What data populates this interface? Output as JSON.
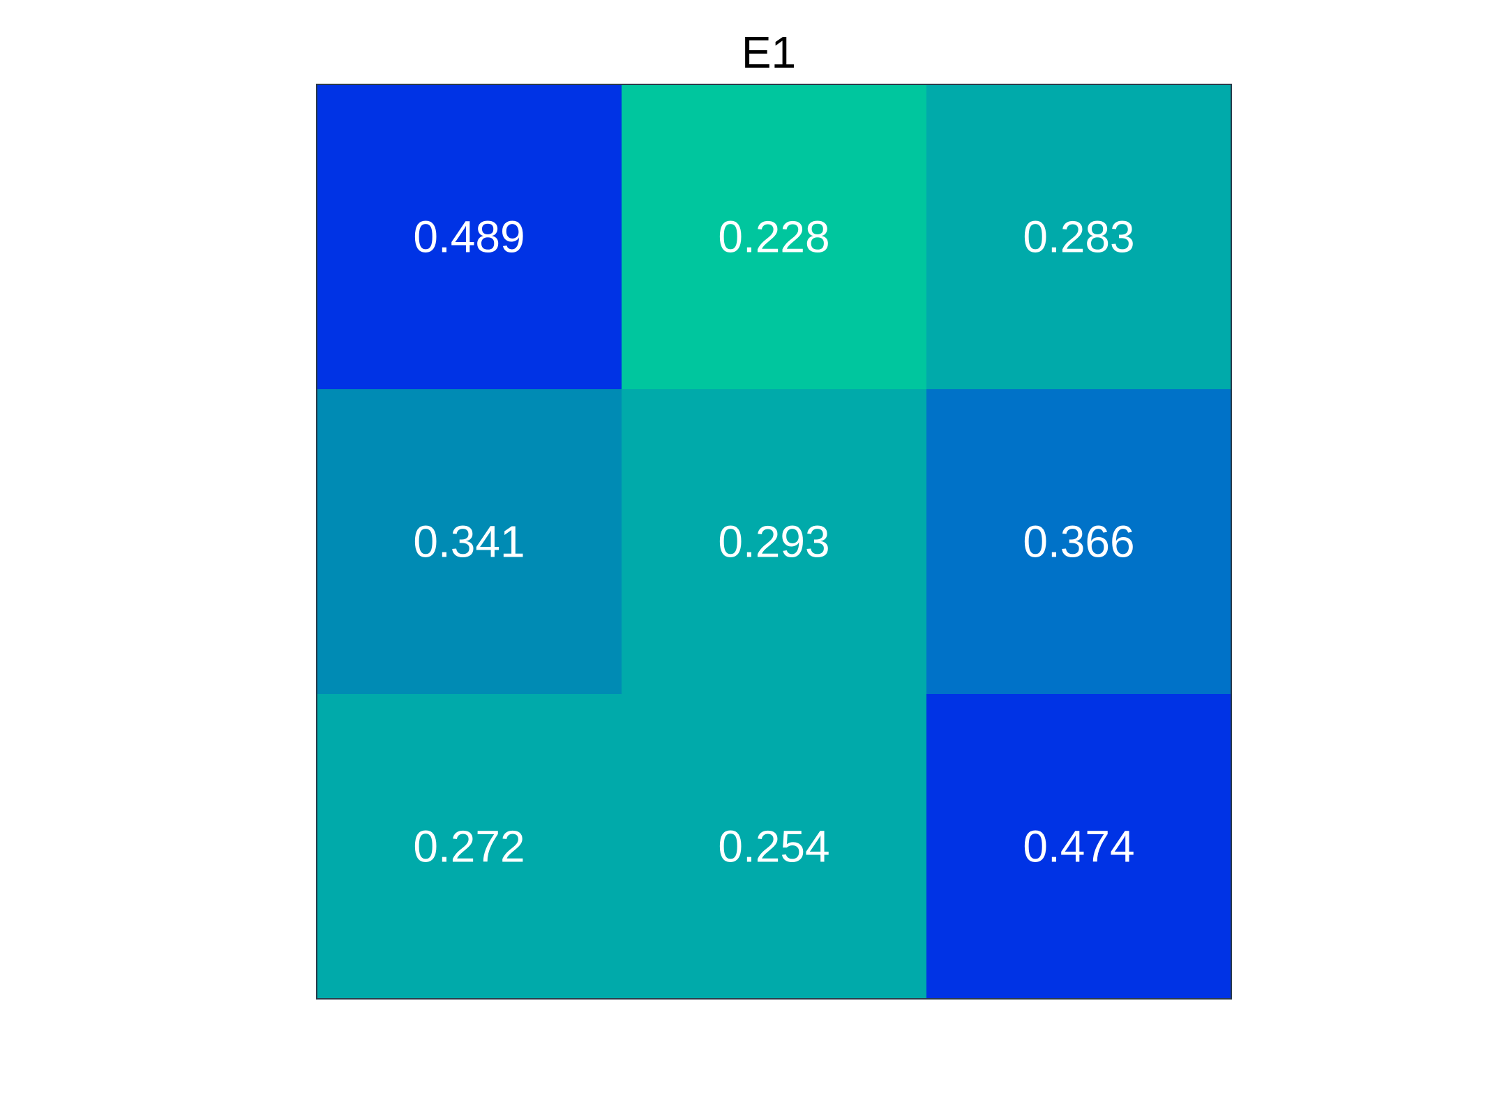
{
  "chart_data": {
    "type": "heatmap",
    "title": "E1",
    "xlabel": "",
    "ylabel": "",
    "rows": 3,
    "cols": 3,
    "values": [
      [
        0.489,
        0.228,
        0.283
      ],
      [
        0.341,
        0.293,
        0.366
      ],
      [
        0.272,
        0.254,
        0.474
      ]
    ],
    "value_labels": [
      [
        "0.489",
        "0.228",
        "0.283"
      ],
      [
        "0.341",
        "0.293",
        "0.366"
      ],
      [
        "0.272",
        "0.254",
        "0.474"
      ]
    ],
    "cell_colors": [
      [
        "#0033e5",
        "#00c69e",
        "#00aaaa"
      ],
      [
        "#008bb4",
        "#00aaaa",
        "#0072c8"
      ],
      [
        "#00aaaa",
        "#00aaaa",
        "#0033e5"
      ]
    ],
    "label_color": "#ffffff",
    "border_color": "#2b3b4a",
    "grid": false,
    "axis_ticks": false
  }
}
